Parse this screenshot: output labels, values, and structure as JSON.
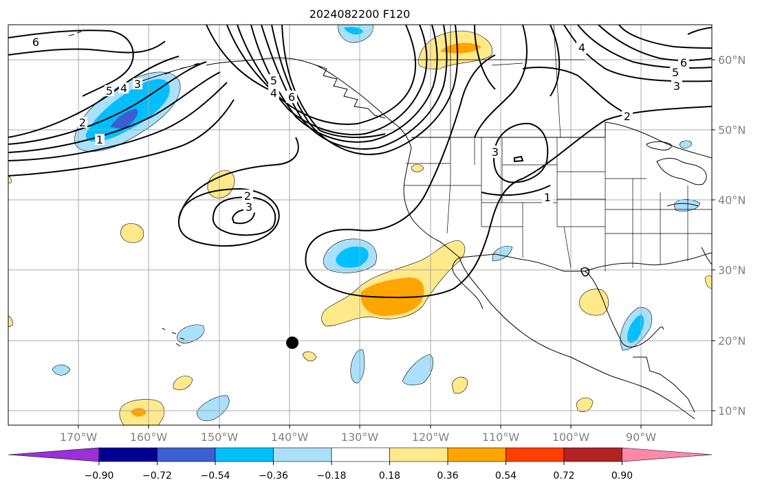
{
  "title": "2024082200 F120",
  "lon_labels": [
    "170°W",
    "160°W",
    "150°W",
    "140°W",
    "130°W",
    "120°W",
    "110°W",
    "100°W",
    "90°W"
  ],
  "lat_labels": [
    "60°N",
    "50°N",
    "40°N",
    "30°N",
    "20°N",
    "10°N"
  ],
  "colorbar": {
    "ticks": [
      "−0.90",
      "−0.72",
      "−0.54",
      "−0.36",
      "−0.18",
      "0.18",
      "0.36",
      "0.54",
      "0.72",
      "0.90"
    ],
    "colors": [
      "#9b30d9",
      "#000090",
      "#3a5fd0",
      "#00bfff",
      "#aae0fc",
      "#ffffff",
      "#ffe98a",
      "#ffa500",
      "#ff4000",
      "#b22222",
      "#ff88aa"
    ]
  },
  "contour_labels": [
    {
      "text": "6"
    },
    {
      "text": "5"
    },
    {
      "text": "4"
    },
    {
      "text": "3"
    },
    {
      "text": "2"
    },
    {
      "text": "1"
    },
    {
      "text": "2"
    },
    {
      "text": "3"
    },
    {
      "text": "6"
    },
    {
      "text": "4"
    },
    {
      "text": "5"
    },
    {
      "text": "3"
    },
    {
      "text": "4"
    },
    {
      "text": "6"
    },
    {
      "text": "5"
    },
    {
      "text": "3"
    },
    {
      "text": "2"
    },
    {
      "text": "1"
    }
  ],
  "marker": {
    "label": "storm-center-dot"
  }
}
